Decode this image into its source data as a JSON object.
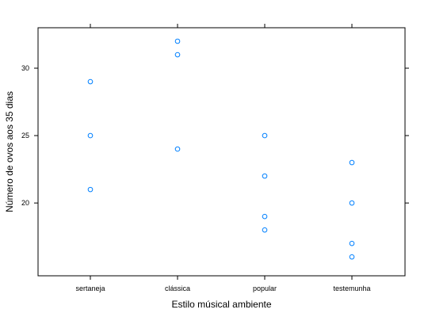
{
  "chart_data": {
    "type": "scatter",
    "title": "",
    "xlabel": "Estilo músical ambiente",
    "ylabel": "Número de ovos aos 35 dias",
    "categories": [
      "sertaneja",
      "clássica",
      "popular",
      "testemunha"
    ],
    "ylim": [
      14.6,
      33.0
    ],
    "yticks": [
      20,
      25,
      30
    ],
    "grid": false,
    "point_color": "#0080ff",
    "series": [
      {
        "points": [
          {
            "x": "sertaneja",
            "y": 29
          },
          {
            "x": "sertaneja",
            "y": 25
          },
          {
            "x": "sertaneja",
            "y": 21
          },
          {
            "x": "clássica",
            "y": 32
          },
          {
            "x": "clássica",
            "y": 31
          },
          {
            "x": "clássica",
            "y": 24
          },
          {
            "x": "popular",
            "y": 25
          },
          {
            "x": "popular",
            "y": 22
          },
          {
            "x": "popular",
            "y": 19
          },
          {
            "x": "popular",
            "y": 18
          },
          {
            "x": "testemunha",
            "y": 23
          },
          {
            "x": "testemunha",
            "y": 20
          },
          {
            "x": "testemunha",
            "y": 17
          },
          {
            "x": "testemunha",
            "y": 16
          }
        ]
      }
    ]
  }
}
